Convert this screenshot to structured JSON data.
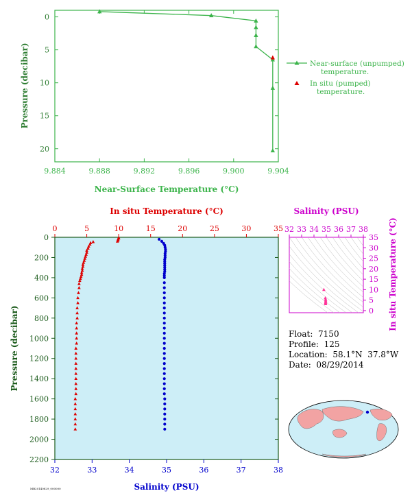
{
  "colors": {
    "green": "#3cb44b",
    "green_dark": "#2e7d32",
    "red": "#dd0000",
    "blue": "#0000cc",
    "magenta": "#cc00cc",
    "panel_fill": "#cdeef7",
    "axis_dark": "#1a5a1a"
  },
  "info": {
    "float": "Float:  7150",
    "profile": "Profile:  125",
    "location": "Location:  58.1°N  37.8°W",
    "date": "Date:  08/29/2014"
  },
  "footer_stamp": "MB20140829_000000",
  "chart_data": [
    {
      "type": "line",
      "xlabel": "Near-Surface Temperature (°C)",
      "ylabel": "Pressure (decibar)",
      "xlim": [
        9.884,
        9.904
      ],
      "ylim": [
        22,
        -1
      ],
      "xticks": [
        9.884,
        9.888,
        9.892,
        9.896,
        9.9,
        9.904
      ],
      "xtick_labels": [
        "9.884",
        "9.888",
        "9.892",
        "9.896",
        "9.900",
        "9.904"
      ],
      "yticks": [
        0,
        5,
        10,
        15,
        20
      ],
      "series": [
        {
          "name": "Near-surface (unpumped) temperature.",
          "marker": "triangle",
          "x": [
            9.888,
            9.898,
            9.902,
            9.902,
            9.902,
            9.902,
            9.9035,
            9.9035,
            9.9035
          ],
          "y": [
            -0.8,
            -0.2,
            0.6,
            1.6,
            2.8,
            4.5,
            6.5,
            10.8,
            20.3
          ]
        },
        {
          "name": "In situ (pumped) temperature.",
          "marker": "triangle",
          "x": [
            9.9035
          ],
          "y": [
            6.2
          ]
        }
      ],
      "legend_position": "right"
    },
    {
      "type": "scatter",
      "xlabel_top": "In situ Temperature (°C)",
      "xlabel_bottom": "Salinity (PSU)",
      "ylabel": "Pressure (decibar)",
      "temp_lim": [
        0,
        35
      ],
      "temp_ticks": [
        0,
        5,
        10,
        15,
        20,
        25,
        30,
        35
      ],
      "sal_lim": [
        32,
        38
      ],
      "sal_ticks": [
        32,
        33,
        34,
        35,
        36,
        37,
        38
      ],
      "pres_lim": [
        2200,
        0
      ],
      "pres_ticks": [
        0,
        200,
        400,
        600,
        800,
        1000,
        1200,
        1400,
        1600,
        1800,
        2000,
        2200
      ],
      "temperature": {
        "pressure": [
          5,
          10,
          20,
          30,
          40,
          45,
          55,
          70,
          90,
          110,
          130,
          150,
          170,
          190,
          210,
          230,
          250,
          270,
          290,
          310,
          330,
          350,
          370,
          390,
          410,
          430,
          460,
          500,
          550,
          600,
          650,
          700,
          750,
          800,
          850,
          900,
          950,
          1000,
          1050,
          1100,
          1150,
          1200,
          1250,
          1300,
          1350,
          1400,
          1450,
          1500,
          1550,
          1600,
          1650,
          1700,
          1750,
          1800,
          1850,
          1900
        ],
        "values": [
          10.0,
          10.0,
          9.9,
          9.9,
          9.8,
          6.0,
          5.6,
          5.5,
          5.3,
          5.2,
          5.0,
          5.0,
          4.9,
          4.8,
          4.7,
          4.6,
          4.5,
          4.4,
          4.4,
          4.3,
          4.3,
          4.2,
          4.2,
          4.1,
          4.0,
          3.9,
          3.8,
          3.8,
          3.7,
          3.6,
          3.6,
          3.5,
          3.5,
          3.5,
          3.4,
          3.4,
          3.4,
          3.4,
          3.4,
          3.3,
          3.3,
          3.3,
          3.3,
          3.3,
          3.3,
          3.3,
          3.3,
          3.3,
          3.3,
          3.2,
          3.2,
          3.2,
          3.2,
          3.2,
          3.2,
          3.2
        ]
      },
      "salinity": {
        "pressure": [
          20,
          40,
          60,
          80,
          100,
          120,
          140,
          160,
          180,
          200,
          220,
          240,
          260,
          280,
          300,
          320,
          340,
          360,
          380,
          400,
          450,
          500,
          550,
          600,
          650,
          700,
          750,
          800,
          850,
          900,
          950,
          1000,
          1050,
          1100,
          1150,
          1200,
          1250,
          1300,
          1350,
          1400,
          1450,
          1500,
          1550,
          1600,
          1650,
          1700,
          1750,
          1800,
          1850,
          1900
        ],
        "values": [
          34.8,
          34.87,
          34.92,
          34.95,
          34.96,
          34.97,
          34.97,
          34.96,
          34.96,
          34.96,
          34.95,
          34.95,
          34.95,
          34.95,
          34.95,
          34.95,
          34.95,
          34.94,
          34.94,
          34.94,
          34.94,
          34.94,
          34.94,
          34.94,
          34.94,
          34.94,
          34.94,
          34.94,
          34.94,
          34.94,
          34.94,
          34.94,
          34.94,
          34.94,
          34.94,
          34.94,
          34.94,
          34.94,
          34.94,
          34.94,
          34.94,
          34.94,
          34.94,
          34.95,
          34.95,
          34.95,
          34.95,
          34.95,
          34.95,
          34.95
        ]
      }
    },
    {
      "type": "scatter",
      "title": "Salinity (PSU)",
      "ylabel": "In situ Temperature (°C)",
      "sal_lim": [
        32,
        38
      ],
      "sal_ticks": [
        32,
        33,
        34,
        35,
        36,
        37,
        38
      ],
      "temp_lim": [
        -1,
        35
      ],
      "temp_ticks": [
        0,
        5,
        10,
        15,
        20,
        25,
        30,
        35
      ],
      "points": {
        "salinity": [
          34.8,
          34.92,
          34.95,
          34.95,
          34.95,
          34.94,
          34.94,
          34.95
        ],
        "temperature": [
          10.0,
          6.0,
          5.3,
          4.7,
          4.2,
          3.8,
          3.4,
          3.2
        ]
      }
    }
  ]
}
